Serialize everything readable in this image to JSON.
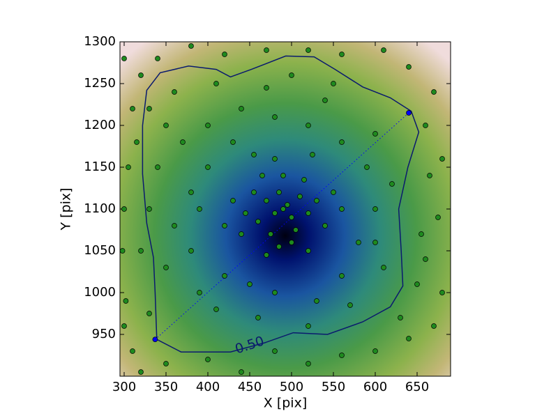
{
  "chart_data": {
    "type": "scatter",
    "x_label": "X [pix]",
    "y_label": "Y [pix]",
    "xlim": [
      295,
      690
    ],
    "ylim": [
      900,
      1300
    ],
    "xticks": [
      300,
      350,
      400,
      450,
      500,
      550,
      600,
      650
    ],
    "yticks": [
      950,
      1000,
      1050,
      1100,
      1150,
      1200,
      1250,
      1300
    ],
    "grid": false,
    "series": [
      {
        "color": "#1e8a1e",
        "x": [
          490,
          495,
          480,
          500,
          470,
          510,
          485,
          460,
          520,
          505,
          475,
          455,
          530,
          490,
          500,
          445,
          540,
          465,
          515,
          485,
          430,
          550,
          470,
          520,
          440,
          480,
          525,
          455,
          560,
          420,
          400,
          380,
          360,
          350,
          390,
          420,
          450,
          480,
          530,
          560,
          580,
          600,
          590,
          560,
          520,
          480,
          440,
          400,
          370,
          340,
          330,
          380,
          410,
          460,
          520,
          570,
          610,
          620,
          600,
          540,
          470,
          410,
          360,
          330,
          350,
          390,
          430,
          550,
          500,
          600,
          300,
          310,
          305,
          300,
          298,
          302,
          300,
          310,
          320,
          350,
          400,
          440,
          480,
          520,
          560,
          600,
          640,
          670,
          680,
          660,
          675,
          665,
          680,
          660,
          670,
          640,
          610,
          560,
          520,
          470,
          420,
          380,
          340,
          320,
          650,
          655,
          630,
          330,
          320,
          315
        ],
        "y": [
          1100,
          1105,
          1095,
          1090,
          1110,
          1115,
          1120,
          1085,
          1095,
          1075,
          1070,
          1120,
          1110,
          1140,
          1060,
          1095,
          1080,
          1140,
          1135,
          1055,
          1110,
          1120,
          1045,
          1050,
          1070,
          1160,
          1165,
          1165,
          1100,
          1080,
          1150,
          1120,
          1080,
          1030,
          1000,
          1020,
          1010,
          1000,
          990,
          1020,
          1060,
          1100,
          1150,
          1180,
          1200,
          1210,
          1220,
          1200,
          1180,
          1150,
          1100,
          1050,
          980,
          970,
          960,
          985,
          1030,
          1130,
          1190,
          1230,
          1245,
          1250,
          1240,
          1220,
          1200,
          1100,
          1180,
          1250,
          1260,
          1060,
          1280,
          1220,
          1150,
          1100,
          1050,
          990,
          960,
          930,
          905,
          915,
          920,
          905,
          930,
          915,
          925,
          930,
          945,
          960,
          1000,
          1040,
          1090,
          1140,
          1160,
          1200,
          1240,
          1270,
          1290,
          1285,
          1290,
          1290,
          1285,
          1295,
          1280,
          1260,
          1010,
          1070,
          970,
          975,
          1050,
          1180
        ]
      },
      {
        "color": "#0000ff",
        "x": [
          337,
          640
        ],
        "y": [
          944,
          1215
        ]
      }
    ],
    "contour": {
      "label": "0.50",
      "color": "#0a1a6e",
      "x": [
        339,
        368,
        427,
        468,
        502,
        543,
        585,
        618,
        633,
        631,
        628,
        639,
        652,
        643,
        618,
        585,
        552,
        527,
        493,
        452,
        427,
        410,
        377,
        343,
        327,
        322,
        322,
        327,
        335,
        337,
        339
      ],
      "y": [
        944,
        929,
        929,
        940,
        952,
        950,
        965,
        983,
        1008,
        1050,
        1100,
        1150,
        1192,
        1217,
        1233,
        1246,
        1267,
        1282,
        1283,
        1267,
        1258,
        1267,
        1271,
        1263,
        1242,
        1200,
        1142,
        1083,
        1042,
        1000,
        944
      ]
    }
  }
}
